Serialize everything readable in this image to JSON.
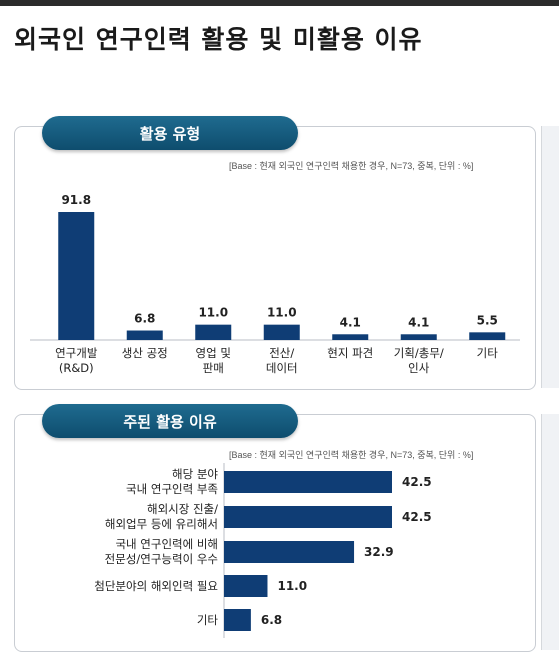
{
  "page_title": "외국인 연구인력 활용 및 미활용 이유",
  "colors": {
    "bar": "#0f3d75",
    "pill": "#135a7d"
  },
  "chart_data": [
    {
      "type": "bar",
      "title": "활용 유형",
      "note": "[Base : 현재 외국인 연구인력 채용한 경우, N=73, 중복, 단위 : %]",
      "categories": [
        [
          "연구개발",
          "(R&D)"
        ],
        [
          "생산 공정"
        ],
        [
          "영업 및",
          "판매"
        ],
        [
          "전산/",
          "데이터"
        ],
        [
          "현지 파견"
        ],
        [
          "기획/총무/",
          "인사"
        ],
        [
          "기타"
        ]
      ],
      "values": [
        91.8,
        6.8,
        11.0,
        11.0,
        4.1,
        4.1,
        5.5
      ],
      "value_labels": [
        "91.8",
        "6.8",
        "11.0",
        "11.0",
        "4.1",
        "4.1",
        "5.5"
      ],
      "ylim": [
        0,
        100
      ]
    },
    {
      "type": "bar",
      "orientation": "horizontal",
      "title": "주된 활용 이유",
      "note": "[Base : 현재 외국인 연구인력 채용한 경우, N=73, 중복, 단위 : %]",
      "categories": [
        [
          "해당 분야",
          "국내 연구인력 부족"
        ],
        [
          "해외시장 진출/",
          "해외업무 등에 유리해서"
        ],
        [
          "국내 연구인력에 비해",
          "전문성/연구능력이 우수"
        ],
        [
          "첨단분야의 해외인력 필요"
        ],
        [
          "기타"
        ]
      ],
      "values": [
        42.5,
        42.5,
        32.9,
        11.0,
        6.8
      ],
      "value_labels": [
        "42.5",
        "42.5",
        "32.9",
        "11.0",
        "6.8"
      ],
      "xlim": [
        0,
        50
      ]
    }
  ]
}
